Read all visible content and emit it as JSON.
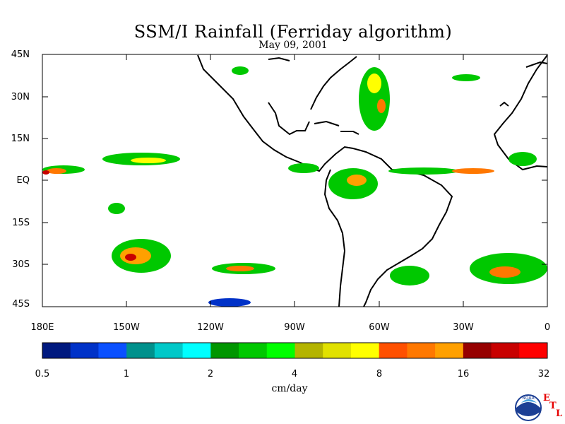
{
  "title": "SSM/I Rainfall (Ferriday algorithm)",
  "subtitle": "May 09, 2001",
  "map": {
    "lat_labels": [
      "45N",
      "30N",
      "15N",
      "EQ",
      "15S",
      "30S",
      "45S"
    ],
    "lon_labels": [
      "180E",
      "150W",
      "120W",
      "90W",
      "60W",
      "30W",
      "0"
    ]
  },
  "colorbar": {
    "tick_labels": [
      "0.5",
      "1",
      "2",
      "4",
      "8",
      "16",
      "32"
    ],
    "unit_label": "cm/day",
    "colors": [
      "#00197f",
      "#0032c8",
      "#0a50ff",
      "#00918c",
      "#00c8c8",
      "#00ffff",
      "#009600",
      "#00c800",
      "#00ff00",
      "#b4b400",
      "#e1e100",
      "#ffff00",
      "#ff5000",
      "#ff7800",
      "#ffa000",
      "#960000",
      "#c80000",
      "#ff0000"
    ]
  },
  "logo": {
    "text": "NOAA",
    "etl_letters": [
      "E",
      "T",
      "L"
    ]
  }
}
